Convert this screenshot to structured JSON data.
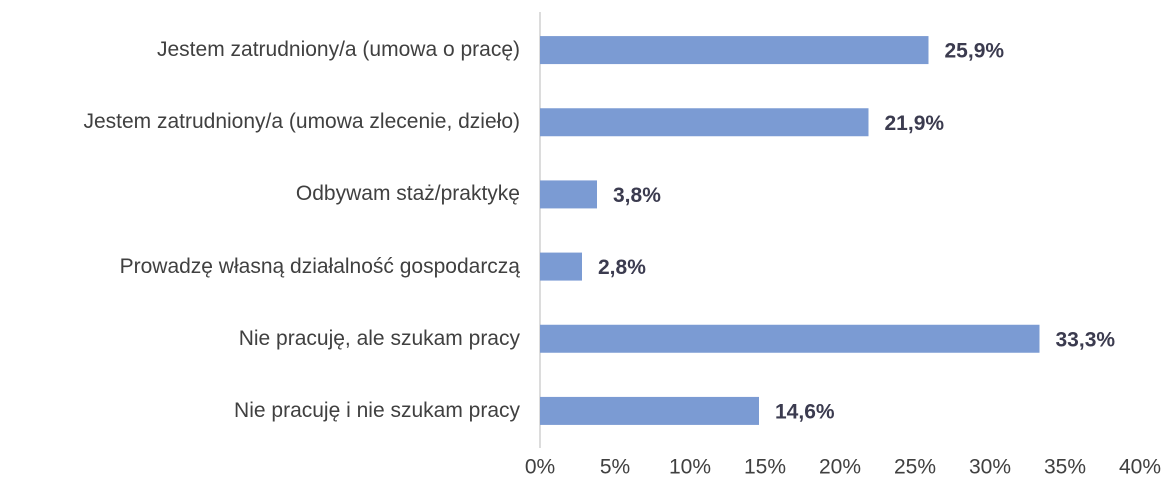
{
  "chart_data": {
    "type": "bar",
    "categories": [
      "Jestem zatrudniony/a (umowa o pracę)",
      "Jestem zatrudniony/a (umowa zlecenie, dzieło)",
      "Odbywam staż/praktykę",
      "Prowadzę własną działalność gospodarczą",
      "Nie pracuję, ale szukam pracy",
      "Nie pracuję i nie szukam pracy"
    ],
    "values": [
      25.9,
      21.9,
      3.8,
      2.8,
      33.3,
      14.6
    ],
    "value_labels": [
      "25,9%",
      "21,9%",
      "3,8%",
      "2,8%",
      "33,3%",
      "14,6%"
    ],
    "color": "#7b9bd3",
    "xlim": [
      0,
      40
    ],
    "xticks": [
      {
        "value": 0,
        "label": "0%"
      },
      {
        "value": 5,
        "label": "5%"
      },
      {
        "value": 10,
        "label": "10%"
      },
      {
        "value": 15,
        "label": "15%"
      },
      {
        "value": 20,
        "label": "20%"
      },
      {
        "value": 25,
        "label": "25%"
      },
      {
        "value": 30,
        "label": "30%"
      },
      {
        "value": 35,
        "label": "35%"
      },
      {
        "value": 40,
        "label": "40%"
      }
    ],
    "grid": false
  }
}
